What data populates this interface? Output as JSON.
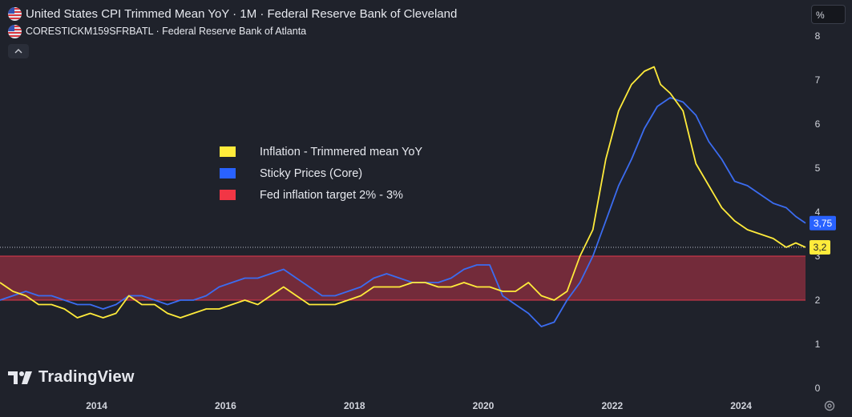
{
  "header": {
    "line1": "United States CPI Trimmed Mean YoY · 1M · Federal Reserve Bank of Cleveland",
    "line2": "CORESTICKM159SFRBATL · Federal Reserve Bank of Atlanta",
    "flag_icon": "us-flag-icon",
    "collapse_icon": "chevron-up-icon"
  },
  "unit_label": "%",
  "legend": [
    {
      "label": "Inflation - Trimmered mean YoY",
      "color": "#ffeb3b"
    },
    {
      "label": "Sticky Prices (Core)",
      "color": "#2962ff"
    },
    {
      "label": "Fed inflation target 2% - 3%",
      "color": "#f23645"
    }
  ],
  "brand": "TradingView",
  "colors": {
    "background": "#1f222b",
    "trimmed_line": "#ffeb3b",
    "sticky_line": "#3b6cf0",
    "band_fill": "#7c2c3c",
    "band_edge": "#e03a4c"
  },
  "chart_data": {
    "type": "line",
    "x_ticks": [
      "2014",
      "2016",
      "2018",
      "2020",
      "2022",
      "2024"
    ],
    "y_ticks": [
      "0",
      "1",
      "2",
      "3",
      "4",
      "5",
      "6",
      "7",
      "8"
    ],
    "ylim": [
      0,
      8
    ],
    "xlim": [
      2012.5,
      2025.0
    ],
    "band": {
      "label": "Fed inflation target 2% - 3%",
      "from": 2,
      "to": 3
    },
    "last_value_labels": [
      {
        "series": "Sticky Prices (Core)",
        "text": "3,75",
        "value": 3.75
      },
      {
        "series": "Inflation - Trimmered mean YoY",
        "text": "3,2",
        "value": 3.2
      }
    ],
    "series": [
      {
        "name": "Inflation - Trimmered mean YoY",
        "color": "#ffeb3b",
        "x": [
          2012.5,
          2012.7,
          2012.9,
          2013.1,
          2013.3,
          2013.5,
          2013.7,
          2013.9,
          2014.1,
          2014.3,
          2014.5,
          2014.7,
          2014.9,
          2015.1,
          2015.3,
          2015.5,
          2015.7,
          2015.9,
          2016.1,
          2016.3,
          2016.5,
          2016.7,
          2016.9,
          2017.1,
          2017.3,
          2017.5,
          2017.7,
          2017.9,
          2018.1,
          2018.3,
          2018.5,
          2018.7,
          2018.9,
          2019.1,
          2019.3,
          2019.5,
          2019.7,
          2019.9,
          2020.1,
          2020.3,
          2020.5,
          2020.7,
          2020.9,
          2021.1,
          2021.3,
          2021.5,
          2021.7,
          2021.9,
          2022.1,
          2022.3,
          2022.5,
          2022.65,
          2022.75,
          2022.9,
          2023.1,
          2023.3,
          2023.5,
          2023.7,
          2023.9,
          2024.1,
          2024.3,
          2024.5,
          2024.7,
          2024.85,
          2025.0
        ],
        "y": [
          2.4,
          2.2,
          2.1,
          1.9,
          1.9,
          1.8,
          1.6,
          1.7,
          1.6,
          1.7,
          2.1,
          1.9,
          1.9,
          1.7,
          1.6,
          1.7,
          1.8,
          1.8,
          1.9,
          2.0,
          1.9,
          2.1,
          2.3,
          2.1,
          1.9,
          1.9,
          1.9,
          2.0,
          2.1,
          2.3,
          2.3,
          2.3,
          2.4,
          2.4,
          2.3,
          2.3,
          2.4,
          2.3,
          2.3,
          2.2,
          2.2,
          2.4,
          2.1,
          2.0,
          2.2,
          3.0,
          3.6,
          5.2,
          6.3,
          6.9,
          7.2,
          7.3,
          6.9,
          6.7,
          6.3,
          5.1,
          4.6,
          4.1,
          3.8,
          3.6,
          3.5,
          3.4,
          3.2,
          3.3,
          3.2
        ]
      },
      {
        "name": "Sticky Prices (Core)",
        "color": "#3b6cf0",
        "x": [
          2012.5,
          2012.7,
          2012.9,
          2013.1,
          2013.3,
          2013.5,
          2013.7,
          2013.9,
          2014.1,
          2014.3,
          2014.5,
          2014.7,
          2014.9,
          2015.1,
          2015.3,
          2015.5,
          2015.7,
          2015.9,
          2016.1,
          2016.3,
          2016.5,
          2016.7,
          2016.9,
          2017.1,
          2017.3,
          2017.5,
          2017.7,
          2017.9,
          2018.1,
          2018.3,
          2018.5,
          2018.7,
          2018.9,
          2019.1,
          2019.3,
          2019.5,
          2019.7,
          2019.9,
          2020.1,
          2020.3,
          2020.5,
          2020.7,
          2020.9,
          2021.1,
          2021.3,
          2021.5,
          2021.7,
          2021.9,
          2022.1,
          2022.3,
          2022.5,
          2022.7,
          2022.9,
          2023.1,
          2023.3,
          2023.5,
          2023.7,
          2023.9,
          2024.1,
          2024.3,
          2024.5,
          2024.7,
          2024.85,
          2025.0
        ],
        "y": [
          2.0,
          2.1,
          2.2,
          2.1,
          2.1,
          2.0,
          1.9,
          1.9,
          1.8,
          1.9,
          2.1,
          2.1,
          2.0,
          1.9,
          2.0,
          2.0,
          2.1,
          2.3,
          2.4,
          2.5,
          2.5,
          2.6,
          2.7,
          2.5,
          2.3,
          2.1,
          2.1,
          2.2,
          2.3,
          2.5,
          2.6,
          2.5,
          2.4,
          2.4,
          2.4,
          2.5,
          2.7,
          2.8,
          2.8,
          2.1,
          1.9,
          1.7,
          1.4,
          1.5,
          2.0,
          2.4,
          3.0,
          3.8,
          4.6,
          5.2,
          5.9,
          6.4,
          6.6,
          6.5,
          6.2,
          5.6,
          5.2,
          4.7,
          4.6,
          4.4,
          4.2,
          4.1,
          3.9,
          3.75
        ]
      }
    ]
  }
}
